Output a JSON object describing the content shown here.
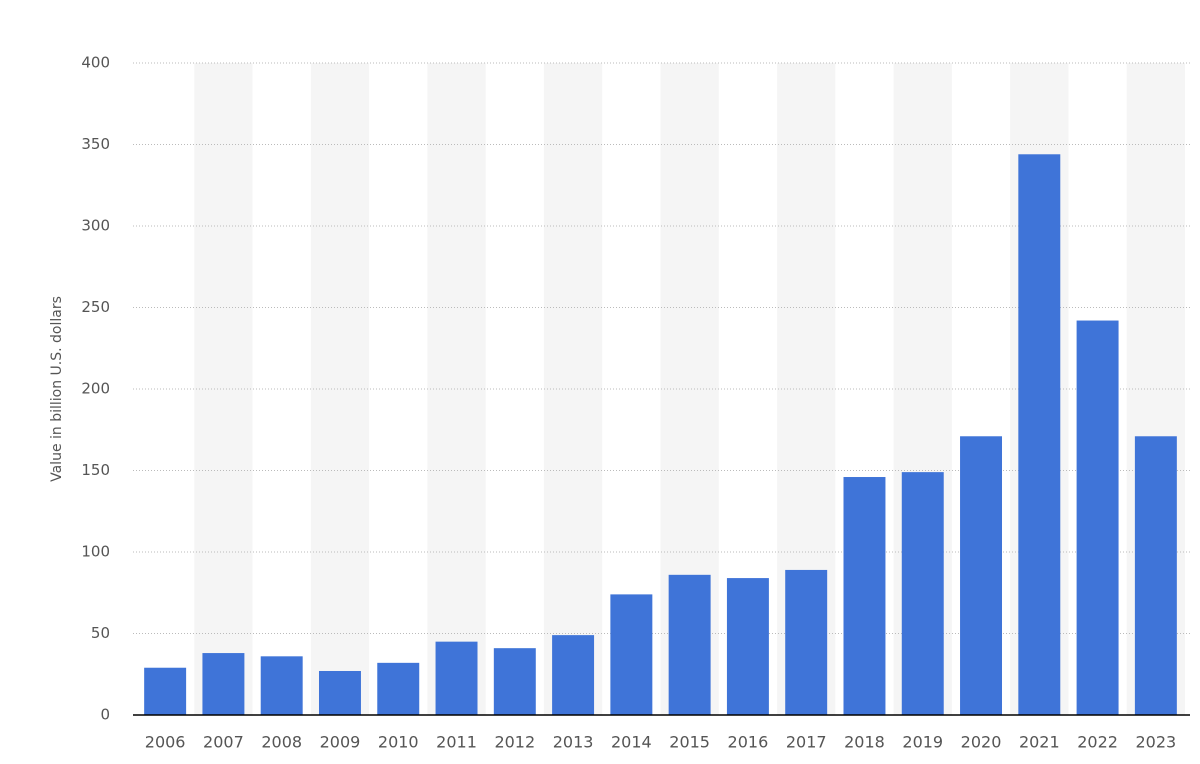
{
  "chart_data": {
    "type": "bar",
    "y_label": "Value in billion U.S. dollars",
    "categories": [
      "2006",
      "2007",
      "2008",
      "2009",
      "2010",
      "2011",
      "2012",
      "2013",
      "2014",
      "2015",
      "2016",
      "2017",
      "2018",
      "2019",
      "2020",
      "2021",
      "2022",
      "2023"
    ],
    "values": [
      29,
      38,
      36,
      27,
      32,
      45,
      41,
      49,
      74,
      86,
      84,
      89,
      146,
      149,
      171,
      344,
      242,
      171
    ],
    "color": "#3f74d8",
    "ylim": [
      0,
      400
    ],
    "yticks": [
      0,
      50,
      100,
      150,
      200,
      250,
      300,
      350,
      400
    ],
    "grid": true
  }
}
